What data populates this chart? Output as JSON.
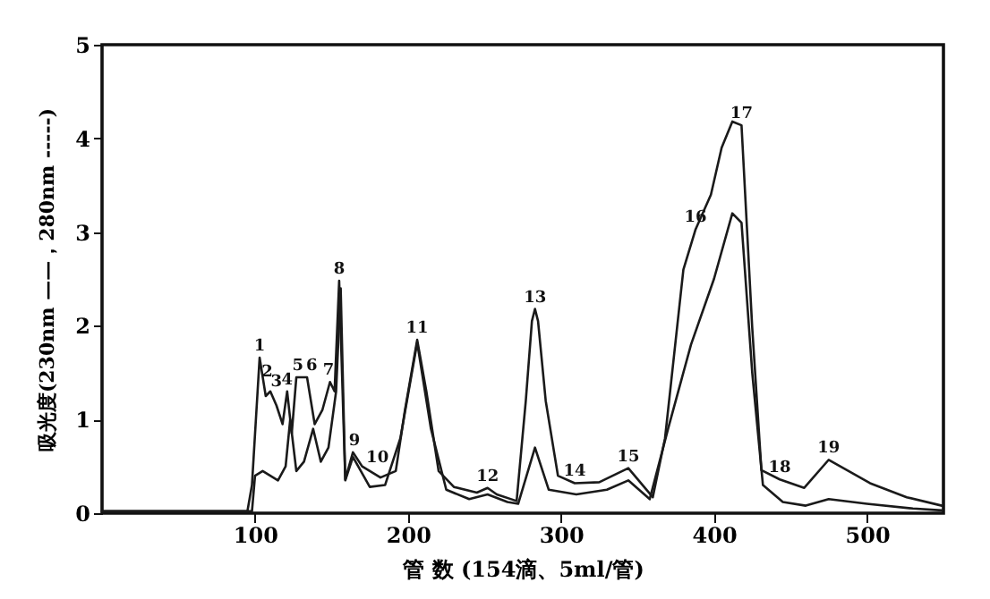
{
  "chart_data": {
    "type": "line",
    "xlabel": "管 数 (154滴、5ml/管)",
    "ylabel": "吸光度(230nm ——，280nm -----)",
    "xlim": [
      0,
      550
    ],
    "ylim": [
      0,
      5
    ],
    "xticks": [
      100,
      200,
      300,
      400,
      500
    ],
    "yticks": [
      0,
      1,
      2,
      3,
      4,
      5
    ],
    "grid": false,
    "marker": "none",
    "line_style": "solid",
    "series": [
      {
        "color": "#1a1a1a",
        "x": [
          0,
          95,
          98,
          103,
          107,
          110,
          114,
          118,
          121,
          124,
          127,
          134,
          139,
          144,
          149,
          152,
          155,
          159,
          164,
          170,
          182,
          192,
          198,
          206,
          212,
          220,
          230,
          245,
          252,
          258,
          271,
          277,
          281,
          283,
          285,
          290,
          298,
          309,
          325,
          344,
          360,
          368,
          380,
          388,
          398,
          405,
          412,
          418,
          425,
          431,
          443,
          459,
          475,
          502,
          526,
          549
        ],
        "values": [
          0.02,
          0.02,
          0.3,
          1.66,
          1.25,
          1.3,
          1.15,
          0.95,
          1.3,
          0.85,
          1.45,
          1.45,
          0.95,
          1.1,
          1.4,
          1.3,
          2.48,
          0.36,
          0.65,
          0.5,
          0.38,
          0.45,
          1.1,
          1.85,
          1.3,
          0.45,
          0.28,
          0.22,
          0.27,
          0.2,
          0.13,
          1.2,
          2.05,
          2.18,
          2.05,
          1.2,
          0.4,
          0.32,
          0.33,
          0.48,
          0.17,
          0.8,
          2.6,
          3.03,
          3.4,
          3.9,
          4.18,
          4.14,
          1.98,
          0.46,
          0.36,
          0.27,
          0.57,
          0.32,
          0.17,
          0.08
        ]
      },
      {
        "color": "#1a1a1a",
        "x": [
          0,
          98,
          100,
          105,
          110,
          115,
          120,
          123,
          127,
          132,
          138,
          143,
          148,
          153,
          156,
          159,
          164,
          175,
          185,
          195,
          206,
          215,
          225,
          240,
          252,
          265,
          272,
          283,
          292,
          310,
          330,
          344,
          358,
          370,
          385,
          400,
          412,
          418,
          425,
          432,
          445,
          460,
          475,
          500,
          530,
          549
        ],
        "values": [
          0.02,
          0.02,
          0.4,
          0.45,
          0.4,
          0.35,
          0.5,
          1.0,
          0.45,
          0.55,
          0.9,
          0.55,
          0.7,
          1.3,
          2.4,
          0.35,
          0.6,
          0.28,
          0.3,
          0.8,
          1.82,
          0.9,
          0.25,
          0.15,
          0.2,
          0.12,
          0.1,
          0.7,
          0.25,
          0.2,
          0.25,
          0.35,
          0.15,
          0.9,
          1.8,
          2.5,
          3.2,
          3.1,
          1.5,
          0.3,
          0.12,
          0.08,
          0.15,
          0.1,
          0.05,
          0.03
        ]
      }
    ],
    "annotations": [
      {
        "text": "1",
        "x": 103,
        "y": 1.66
      },
      {
        "text": "2",
        "x": 108,
        "y": 1.38
      },
      {
        "text": "3",
        "x": 114,
        "y": 1.28
      },
      {
        "text": "4",
        "x": 121,
        "y": 1.3
      },
      {
        "text": "5",
        "x": 128,
        "y": 1.45
      },
      {
        "text": "6",
        "x": 137,
        "y": 1.45
      },
      {
        "text": "7",
        "x": 148,
        "y": 1.4
      },
      {
        "text": "8",
        "x": 155,
        "y": 2.48
      },
      {
        "text": "9",
        "x": 165,
        "y": 0.65
      },
      {
        "text": "10",
        "x": 180,
        "y": 0.47
      },
      {
        "text": "11",
        "x": 206,
        "y": 1.85
      },
      {
        "text": "12",
        "x": 252,
        "y": 0.27
      },
      {
        "text": "13",
        "x": 283,
        "y": 2.18
      },
      {
        "text": "14",
        "x": 309,
        "y": 0.32
      },
      {
        "text": "15",
        "x": 344,
        "y": 0.48
      },
      {
        "text": "16",
        "x": 388,
        "y": 3.03
      },
      {
        "text": "17",
        "x": 418,
        "y": 4.14
      },
      {
        "text": "18",
        "x": 443,
        "y": 0.36
      },
      {
        "text": "19",
        "x": 475,
        "y": 0.57
      }
    ]
  }
}
